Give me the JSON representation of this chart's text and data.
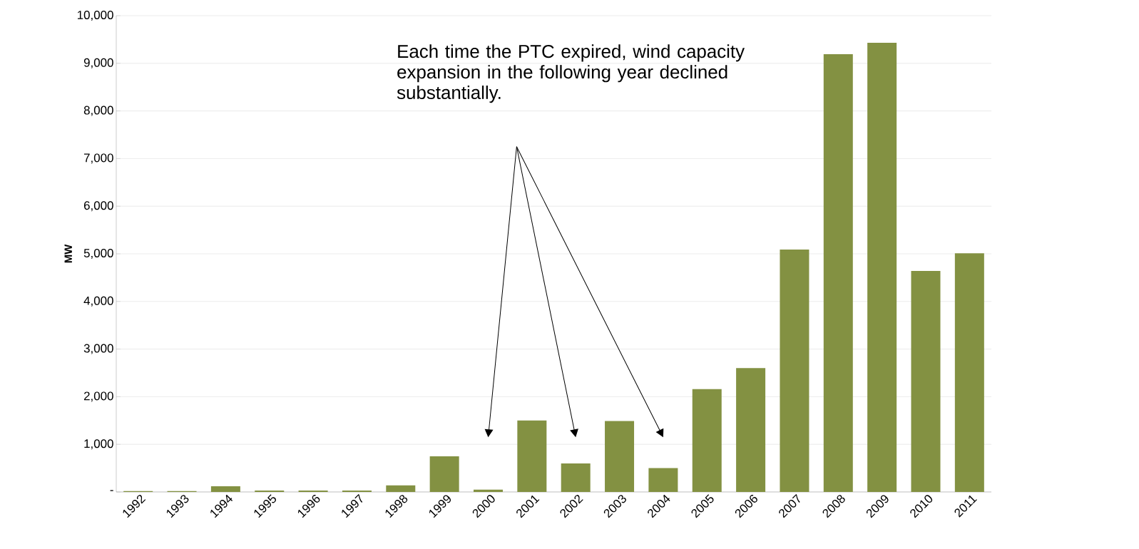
{
  "chart_data": {
    "type": "bar",
    "ylabel": "MW",
    "categories": [
      "1992",
      "1993",
      "1994",
      "1995",
      "1996",
      "1997",
      "1998",
      "1999",
      "2000",
      "2001",
      "2002",
      "2003",
      "2004",
      "2005",
      "2006",
      "2007",
      "2008",
      "2009",
      "2010",
      "2011"
    ],
    "values": [
      20,
      20,
      120,
      30,
      30,
      30,
      140,
      750,
      50,
      1500,
      600,
      1490,
      500,
      2160,
      2600,
      5090,
      9190,
      9430,
      4640,
      5010
    ],
    "color": "#839142",
    "ylim": [
      0,
      10000
    ],
    "yticks": [
      {
        "value": 0,
        "label": "-"
      },
      {
        "value": 1000,
        "label": "1,000"
      },
      {
        "value": 2000,
        "label": "2,000"
      },
      {
        "value": 3000,
        "label": "3,000"
      },
      {
        "value": 4000,
        "label": "4,000"
      },
      {
        "value": 5000,
        "label": "5,000"
      },
      {
        "value": 6000,
        "label": "6,000"
      },
      {
        "value": 7000,
        "label": "7,000"
      },
      {
        "value": 8000,
        "label": "8,000"
      },
      {
        "value": 9000,
        "label": "9,000"
      },
      {
        "value": 10000,
        "label": "10,000"
      }
    ],
    "grid": "y",
    "annotations": [
      "Each time the PTC expired, wind capacity expansion in the following year declined substantially."
    ]
  }
}
